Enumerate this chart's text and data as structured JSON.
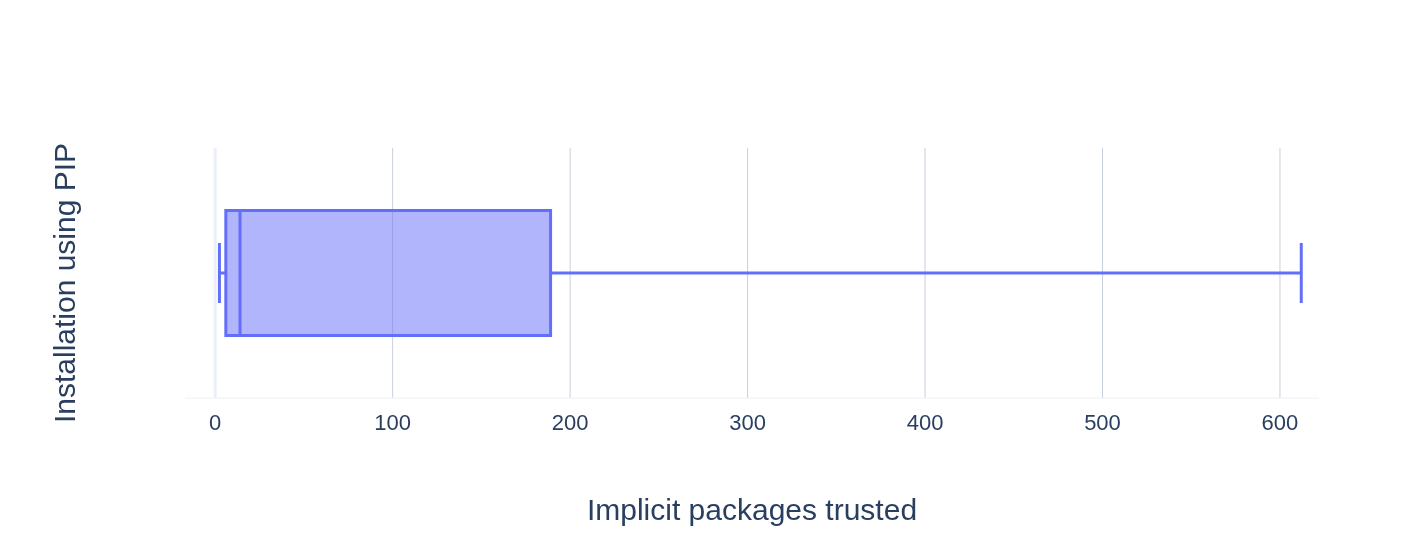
{
  "chart_data": {
    "type": "box",
    "orientation": "horizontal",
    "xlabel": "Implicit packages trusted",
    "ylabel": "Installation using PIP",
    "categories": [
      null
    ],
    "boxes": [
      {
        "low": 2.4,
        "q1": 6,
        "median": 14,
        "q3": 189,
        "high": 612
      }
    ],
    "color": "#636efa",
    "xlim": [
      -17,
      622
    ],
    "xticks": [
      0,
      100,
      200,
      300,
      400,
      500,
      600
    ],
    "grid": "x"
  }
}
